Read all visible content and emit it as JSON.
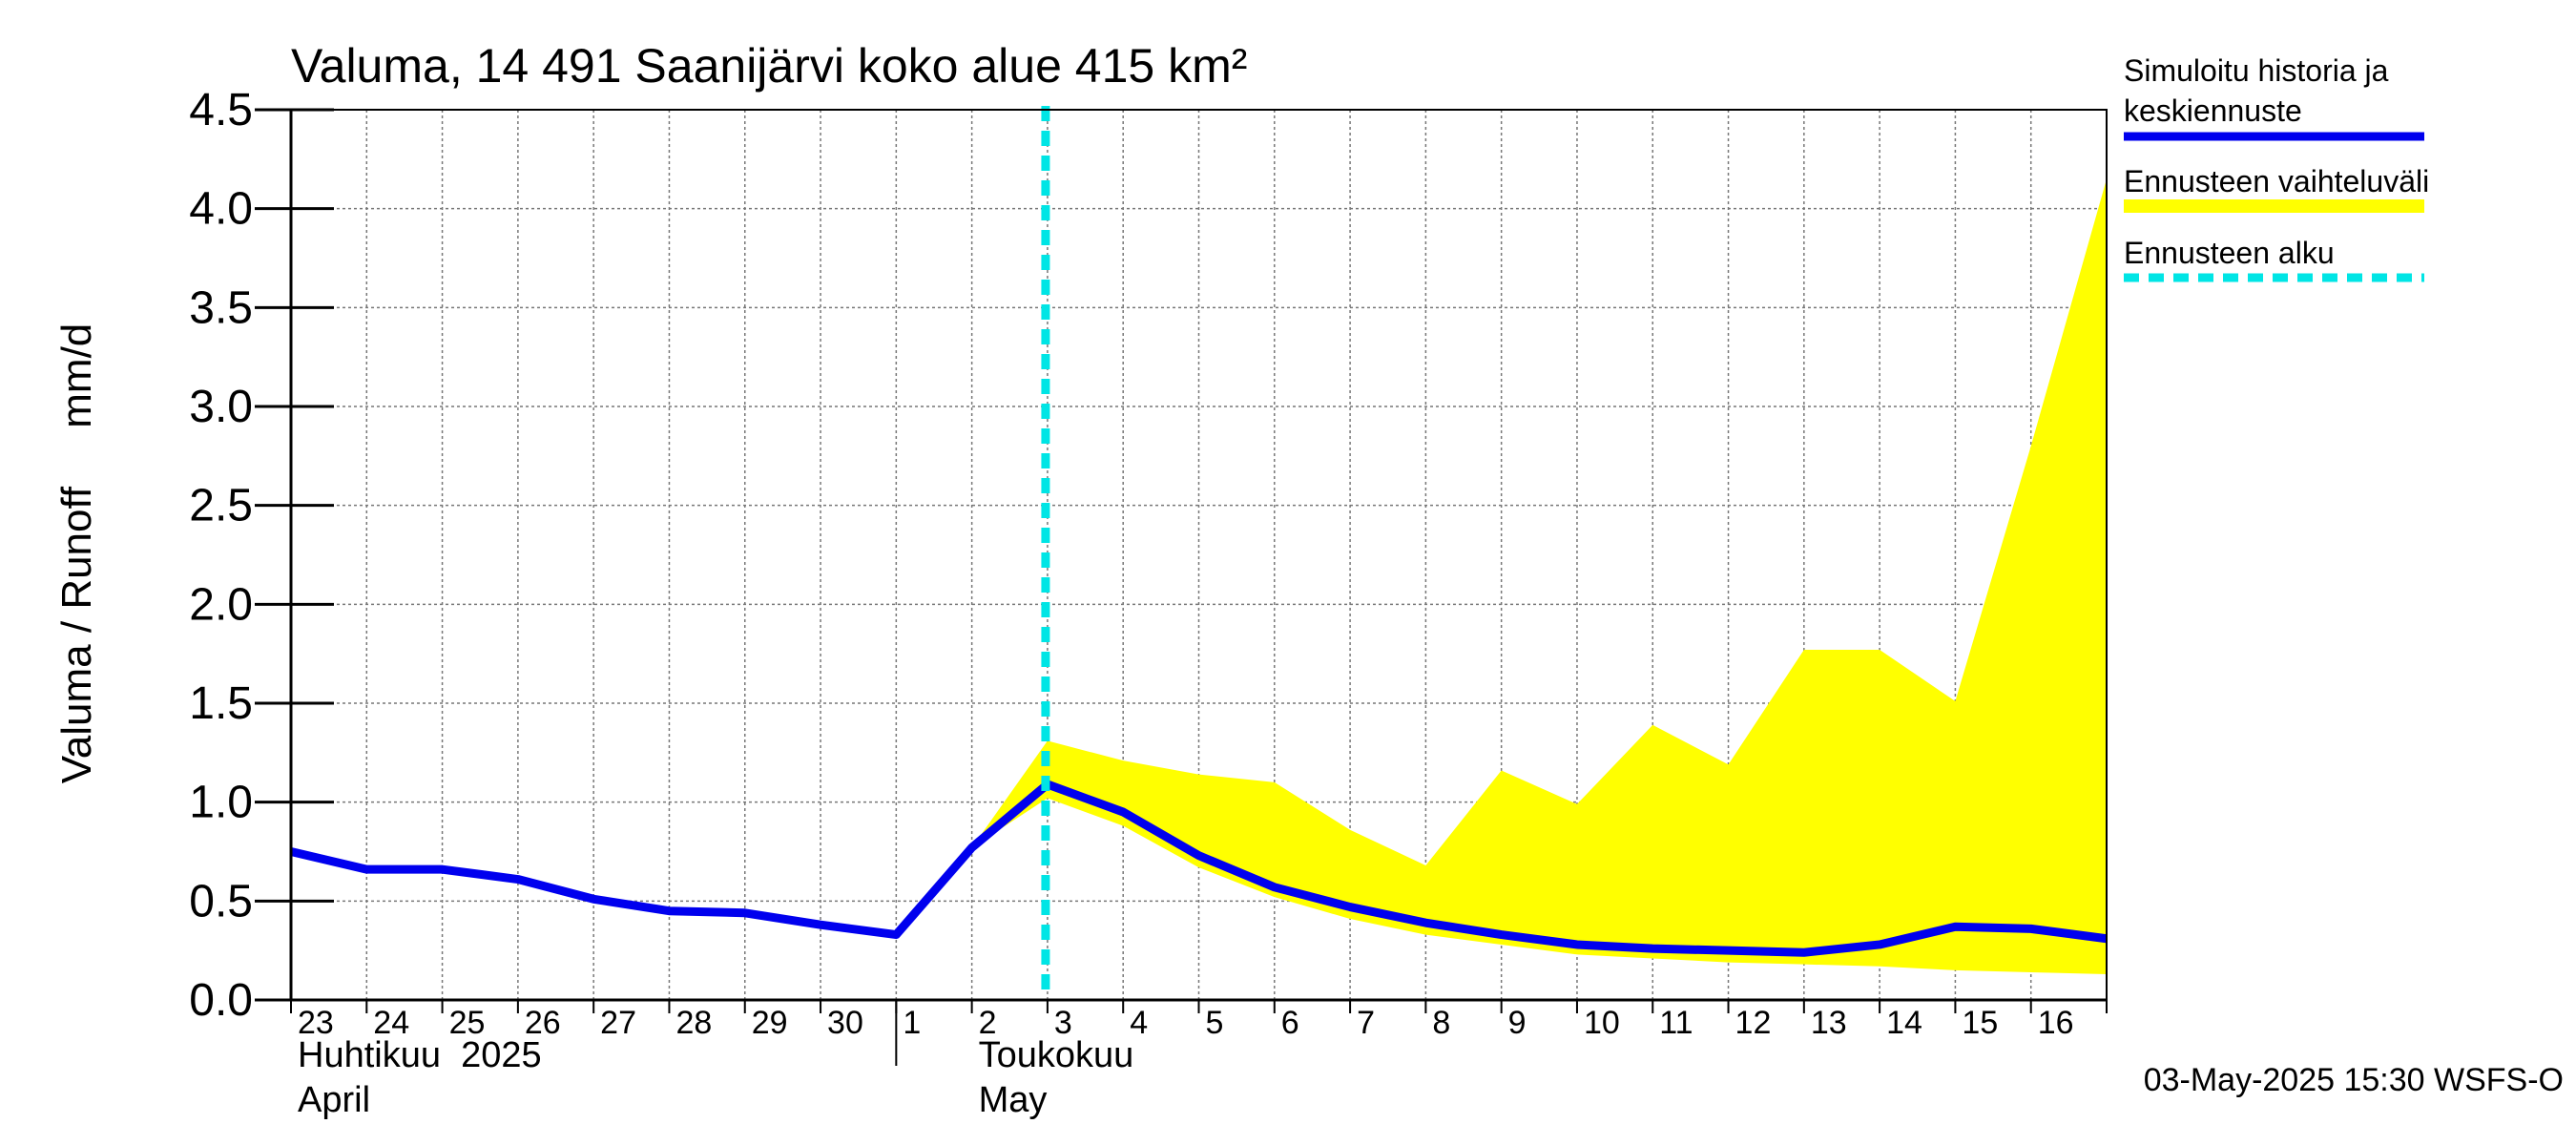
{
  "chart_data": {
    "type": "line",
    "title": "Valuma, 14 491 Saanijärvi koko alue 415 km²",
    "ylabel": "Valuma / Runoff     mm/d",
    "ylim": [
      0,
      4.5
    ],
    "yticks": [
      0.0,
      0.5,
      1.0,
      1.5,
      2.0,
      2.5,
      3.0,
      3.5,
      4.0,
      4.5
    ],
    "ytick_labels": [
      "0.0",
      "0.5",
      "1.0",
      "1.5",
      "2.0",
      "2.5",
      "3.0",
      "3.5",
      "4.0",
      "4.5"
    ],
    "x_start": "2025-04-23",
    "x_end": "2025-05-17",
    "xtick_labels": [
      "23",
      "24",
      "25",
      "26",
      "27",
      "28",
      "29",
      "30",
      "1",
      "2",
      "3",
      "4",
      "5",
      "6",
      "7",
      "8",
      "9",
      "10",
      "11",
      "12",
      "13",
      "14",
      "15",
      "16"
    ],
    "month_labels": [
      {
        "fi": "Huhtikuu  2025",
        "en": "April"
      },
      {
        "fi": "Toukokuu",
        "en": "May"
      }
    ],
    "grid": true,
    "forecast_start": "2025-05-03",
    "series": [
      {
        "name": "Simuloitu historia ja keskiennuste",
        "color": "#0000ee",
        "x": [
          "2025-04-23",
          "2025-04-24",
          "2025-04-25",
          "2025-04-26",
          "2025-04-27",
          "2025-04-28",
          "2025-04-29",
          "2025-04-30",
          "2025-05-01",
          "2025-05-02",
          "2025-05-03",
          "2025-05-04",
          "2025-05-05",
          "2025-05-06",
          "2025-05-07",
          "2025-05-08",
          "2025-05-09",
          "2025-05-10",
          "2025-05-11",
          "2025-05-12",
          "2025-05-13",
          "2025-05-14",
          "2025-05-15",
          "2025-05-16",
          "2025-05-17"
        ],
        "values": [
          0.75,
          0.66,
          0.66,
          0.61,
          0.51,
          0.45,
          0.44,
          0.38,
          0.33,
          0.77,
          1.09,
          0.95,
          0.73,
          0.57,
          0.47,
          0.39,
          0.33,
          0.28,
          0.26,
          0.25,
          0.24,
          0.28,
          0.37,
          0.36,
          0.31
        ]
      },
      {
        "name": "Ennusteen vaihteluväli",
        "color": "#ffff00",
        "x": [
          "2025-05-02",
          "2025-05-03",
          "2025-05-04",
          "2025-05-05",
          "2025-05-06",
          "2025-05-07",
          "2025-05-08",
          "2025-05-09",
          "2025-05-10",
          "2025-05-11",
          "2025-05-12",
          "2025-05-13",
          "2025-05-14",
          "2025-05-15",
          "2025-05-16",
          "2025-05-17"
        ],
        "upper": [
          0.77,
          1.31,
          1.21,
          1.14,
          1.1,
          0.86,
          0.68,
          1.16,
          0.99,
          1.39,
          1.19,
          1.77,
          1.77,
          1.51,
          2.8,
          4.15
        ],
        "lower": [
          0.77,
          1.02,
          0.88,
          0.67,
          0.52,
          0.41,
          0.33,
          0.28,
          0.23,
          0.21,
          0.19,
          0.18,
          0.17,
          0.15,
          0.14,
          0.13
        ]
      },
      {
        "name": "Ennusteen alku",
        "color": "#00e5e5"
      }
    ],
    "legend_placement": "right",
    "footer": "03-May-2025 15:30 WSFS-O"
  }
}
